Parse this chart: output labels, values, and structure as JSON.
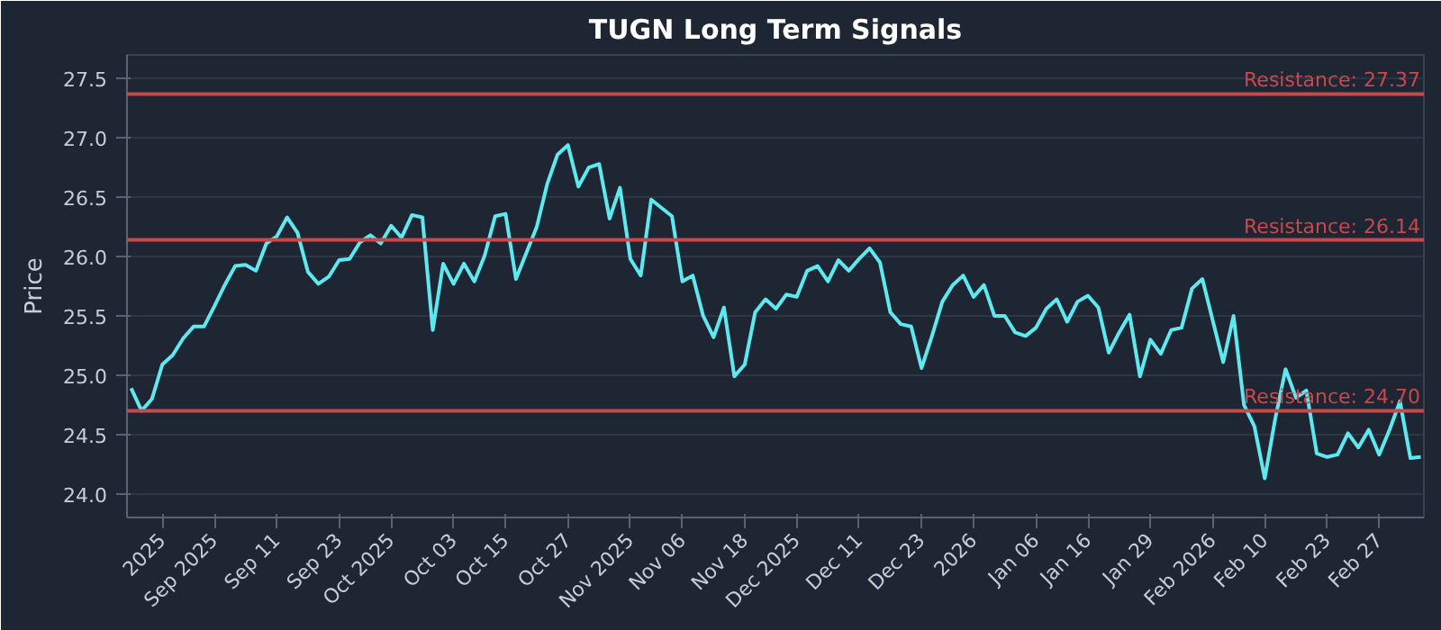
{
  "chart_data": {
    "type": "line",
    "title": "TUGN Long Term Signals",
    "ylabel": "Price",
    "categories": [
      null,
      null,
      null,
      "2025",
      null,
      null,
      null,
      null,
      "Sep 2025",
      null,
      null,
      null,
      null,
      null,
      "Sep 11",
      null,
      null,
      null,
      null,
      null,
      "Sep 23",
      null,
      null,
      null,
      null,
      "Oct 2025",
      null,
      null,
      null,
      null,
      null,
      "Oct 03",
      null,
      null,
      null,
      null,
      "Oct 15",
      null,
      null,
      null,
      null,
      null,
      "Oct 27",
      null,
      null,
      null,
      null,
      null,
      "Nov 2025",
      null,
      null,
      null,
      null,
      "Nov 06",
      null,
      null,
      null,
      null,
      null,
      "Nov 18",
      null,
      null,
      null,
      null,
      "Dec 2025",
      null,
      null,
      null,
      null,
      null,
      "Dec 11",
      null,
      null,
      null,
      null,
      null,
      "Dec 23",
      null,
      null,
      null,
      null,
      "2026",
      null,
      null,
      null,
      null,
      null,
      "Jan 06",
      null,
      null,
      null,
      null,
      "Jan 16",
      null,
      null,
      null,
      null,
      null,
      "Jan 29",
      null,
      null,
      null,
      null,
      null,
      "Feb 2026",
      null,
      null,
      null,
      null,
      "Feb 10",
      null,
      null,
      null,
      null,
      null,
      "Feb 23",
      null,
      null,
      null,
      null,
      "Feb 27",
      null,
      null,
      null,
      null
    ],
    "series": [
      {
        "color": "#5ee8f0",
        "values": [
          24.89,
          24.7,
          24.8,
          25.09,
          25.17,
          25.31,
          25.41,
          25.41,
          25.58,
          25.76,
          25.92,
          25.93,
          25.88,
          26.11,
          26.17,
          26.33,
          26.2,
          25.87,
          25.77,
          25.83,
          25.97,
          25.98,
          26.12,
          26.18,
          26.11,
          26.26,
          26.16,
          26.35,
          26.33,
          25.38,
          25.94,
          25.77,
          25.94,
          25.79,
          26.01,
          26.34,
          26.36,
          25.81,
          26.03,
          26.25,
          26.61,
          26.86,
          26.94,
          26.59,
          26.75,
          26.78,
          26.32,
          26.58,
          25.98,
          25.84,
          26.48,
          26.41,
          26.34,
          25.79,
          25.84,
          25.5,
          25.32,
          25.57,
          24.99,
          25.09,
          25.53,
          25.64,
          25.56,
          25.68,
          25.66,
          25.88,
          25.92,
          25.79,
          25.97,
          25.88,
          25.98,
          26.07,
          25.95,
          25.53,
          25.43,
          25.41,
          25.06,
          25.33,
          25.62,
          25.76,
          25.84,
          25.66,
          25.76,
          25.5,
          25.5,
          25.36,
          25.33,
          25.4,
          25.56,
          25.64,
          25.45,
          25.62,
          25.67,
          25.57,
          25.19,
          25.36,
          25.51,
          24.99,
          25.3,
          25.18,
          25.38,
          25.4,
          25.73,
          25.81,
          25.46,
          25.11,
          25.5,
          24.75,
          24.57,
          24.13,
          24.63,
          25.05,
          24.81,
          24.87,
          24.34,
          24.31,
          24.33,
          24.51,
          24.39,
          24.54,
          24.33,
          24.54,
          24.78,
          24.3,
          24.31
        ]
      }
    ],
    "ylim": [
      23.8,
      27.7
    ],
    "yticks": [
      {
        "value": 24,
        "label": "24.0"
      },
      24.5,
      {
        "value": 25,
        "label": "25.0"
      },
      25.5,
      {
        "value": 26,
        "label": "26.0"
      },
      26.5,
      {
        "value": 27,
        "label": "27.0"
      },
      27.5
    ],
    "grid": "y",
    "ref_lines": [
      {
        "axis": "y",
        "value": 27.37,
        "label": "Resistance: 27.37",
        "color": "#c9474d"
      },
      {
        "axis": "y",
        "value": 26.14,
        "label": "Resistance: 26.14",
        "color": "#c9474d"
      },
      {
        "axis": "y",
        "value": 24.7,
        "label": "Resistance: 24.70",
        "color": "#c9474d"
      }
    ]
  }
}
